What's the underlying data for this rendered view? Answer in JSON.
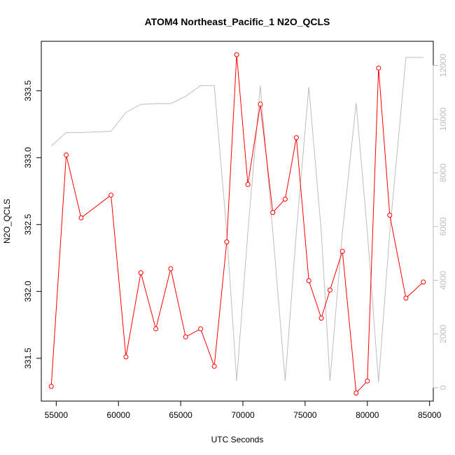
{
  "chart_data": {
    "type": "line",
    "title": "ATOM4 Northeast_Pacific_1 N2O_QCLS",
    "xlabel": "UTC Seconds",
    "ylabel": "N2O_QCLS",
    "xlim": [
      53800,
      85300
    ],
    "ylim": [
      331.18,
      333.87
    ],
    "y2lim": [
      -500,
      12900
    ],
    "x_ticks": [
      55000,
      60000,
      65000,
      70000,
      75000,
      80000,
      85000
    ],
    "y_ticks": [
      331.5,
      332.0,
      332.5,
      333.0,
      333.5
    ],
    "y_tick_labels": [
      "331.5",
      "332.0",
      "332.5",
      "333.0",
      "333.5"
    ],
    "y2_ticks": [
      0,
      2000,
      4000,
      6000,
      8000,
      10000,
      12000
    ],
    "grid": false,
    "series": [
      {
        "color": "#ff0000",
        "marker": "open-circle",
        "axis": "left",
        "x": [
          54600,
          55800,
          57000,
          59400,
          60600,
          61800,
          63000,
          64200,
          65400,
          66600,
          67700,
          68700,
          69500,
          70400,
          71400,
          72400,
          73400,
          74300,
          75300,
          76300,
          77000,
          78000,
          79100,
          80000,
          80900,
          81800,
          83100,
          84500
        ],
        "values": [
          331.29,
          333.02,
          332.55,
          332.72,
          331.51,
          332.14,
          331.72,
          332.17,
          331.66,
          331.72,
          331.44,
          332.37,
          333.77,
          332.8,
          333.4,
          332.59,
          332.69,
          333.15,
          332.08,
          331.8,
          332.01,
          332.3,
          331.24,
          331.33,
          333.67,
          332.57,
          331.95,
          332.07
        ]
      },
      {
        "color": "#bebebe",
        "marker": "none",
        "axis": "right",
        "x": [
          54600,
          55800,
          57000,
          59400,
          60600,
          61800,
          63000,
          64200,
          65400,
          66600,
          67700,
          68700,
          69500,
          70400,
          71400,
          72400,
          73400,
          74300,
          75300,
          76300,
          77000,
          78000,
          79100,
          80000,
          80900,
          81800,
          83100,
          84500
        ],
        "values": [
          9000,
          9500,
          9500,
          9550,
          10250,
          10550,
          10580,
          10580,
          10850,
          11250,
          11250,
          5800,
          250,
          5800,
          11250,
          5800,
          250,
          5800,
          11200,
          5800,
          250,
          5800,
          10600,
          5800,
          200,
          5800,
          12300,
          12300
        ]
      }
    ]
  }
}
